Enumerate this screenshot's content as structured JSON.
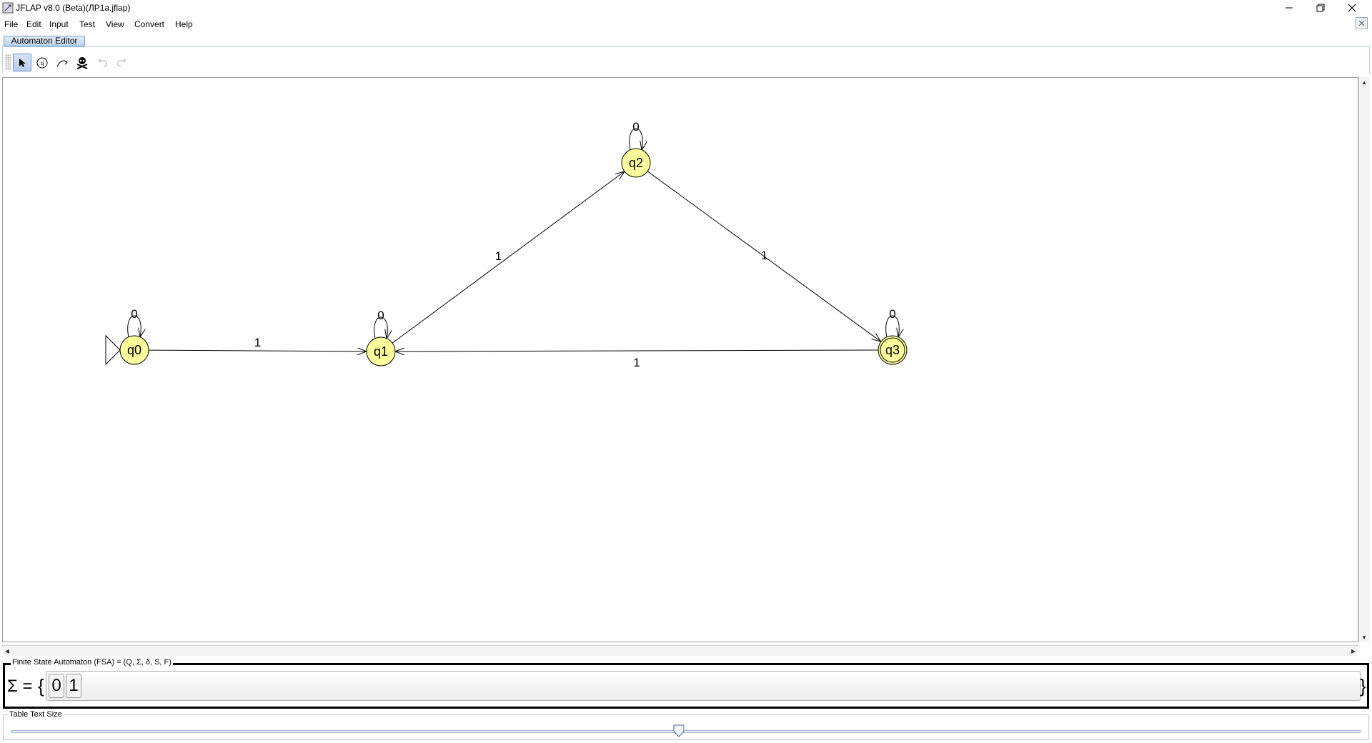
{
  "window": {
    "title": "JFLAP v8.0 (Beta)(ЛР1a.jflap)",
    "controls": {
      "minimize": "minimize",
      "restore": "restore",
      "close": "close"
    }
  },
  "menu": {
    "items": [
      "File",
      "Edit",
      "Input",
      "Test",
      "View",
      "Convert",
      "Help"
    ]
  },
  "tabs": {
    "active": "Automaton Editor"
  },
  "toolbar": {
    "tools": [
      {
        "icon": "arrow-select-icon",
        "active": true
      },
      {
        "icon": "add-state-icon",
        "active": false
      },
      {
        "icon": "add-transition-icon",
        "active": false
      },
      {
        "icon": "delete-skull-icon",
        "active": false
      },
      {
        "icon": "undo-icon",
        "active": false
      },
      {
        "icon": "redo-icon",
        "active": false
      }
    ]
  },
  "automaton": {
    "state_fill": "#ffff9c",
    "states": [
      {
        "id": "q0",
        "initial": true,
        "final": false
      },
      {
        "id": "q1",
        "initial": false,
        "final": false
      },
      {
        "id": "q2",
        "initial": false,
        "final": false
      },
      {
        "id": "q3",
        "initial": false,
        "final": true
      }
    ],
    "transitions": [
      {
        "from": "q0",
        "to": "q0",
        "label": "0"
      },
      {
        "from": "q0",
        "to": "q1",
        "label": "1"
      },
      {
        "from": "q1",
        "to": "q1",
        "label": "0"
      },
      {
        "from": "q1",
        "to": "q2",
        "label": "1"
      },
      {
        "from": "q2",
        "to": "q2",
        "label": "0"
      },
      {
        "from": "q2",
        "to": "q3",
        "label": "1"
      },
      {
        "from": "q3",
        "to": "q3",
        "label": "0"
      },
      {
        "from": "q3",
        "to": "q1",
        "label": "1"
      }
    ]
  },
  "fsa": {
    "title": "Finite State Automaton (FSA) = (Q, Σ, δ, S, F)",
    "sigma": "Σ =",
    "brace_open": "{",
    "brace_close": "}",
    "alphabet": [
      "0",
      "1"
    ]
  },
  "text_size": {
    "label": "Table Text Size",
    "level": 0.5
  }
}
